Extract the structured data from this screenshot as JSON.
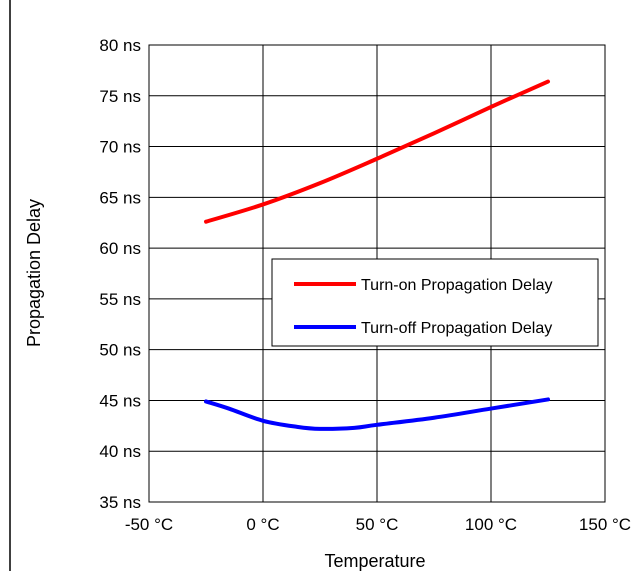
{
  "chart_data": {
    "type": "line",
    "title": "",
    "xlabel": "Temperature",
    "ylabel": "Propagation Delay",
    "xlim": [
      -50,
      150
    ],
    "ylim": [
      35,
      80
    ],
    "x_ticks": [
      -50,
      0,
      50,
      100,
      150
    ],
    "y_ticks": [
      35,
      40,
      45,
      50,
      55,
      60,
      65,
      70,
      75,
      80
    ],
    "x_tick_labels": [
      "-50 °C",
      "0 °C",
      "50 °C",
      "100 °C",
      "150 °C"
    ],
    "y_tick_labels": [
      "35 ns",
      "40 ns",
      "45 ns",
      "50 ns",
      "55 ns",
      "60 ns",
      "65 ns",
      "70 ns",
      "75 ns",
      "80 ns"
    ],
    "grid": true,
    "legend": "center-right",
    "series": [
      {
        "name": "Turn-on Propagation Delay",
        "color": "#ff0000",
        "x": [
          -25,
          0,
          25,
          50,
          75,
          100,
          125
        ],
        "y": [
          62.6,
          64.3,
          66.4,
          68.8,
          71.3,
          73.9,
          76.4
        ]
      },
      {
        "name": "Turn-off Propagation Delay",
        "color": "#0000ff",
        "x": [
          -25,
          -15,
          0,
          15,
          25,
          40,
          50,
          75,
          100,
          125
        ],
        "y": [
          44.9,
          44.2,
          43.0,
          42.4,
          42.2,
          42.3,
          42.6,
          43.3,
          44.2,
          45.1
        ]
      }
    ]
  }
}
